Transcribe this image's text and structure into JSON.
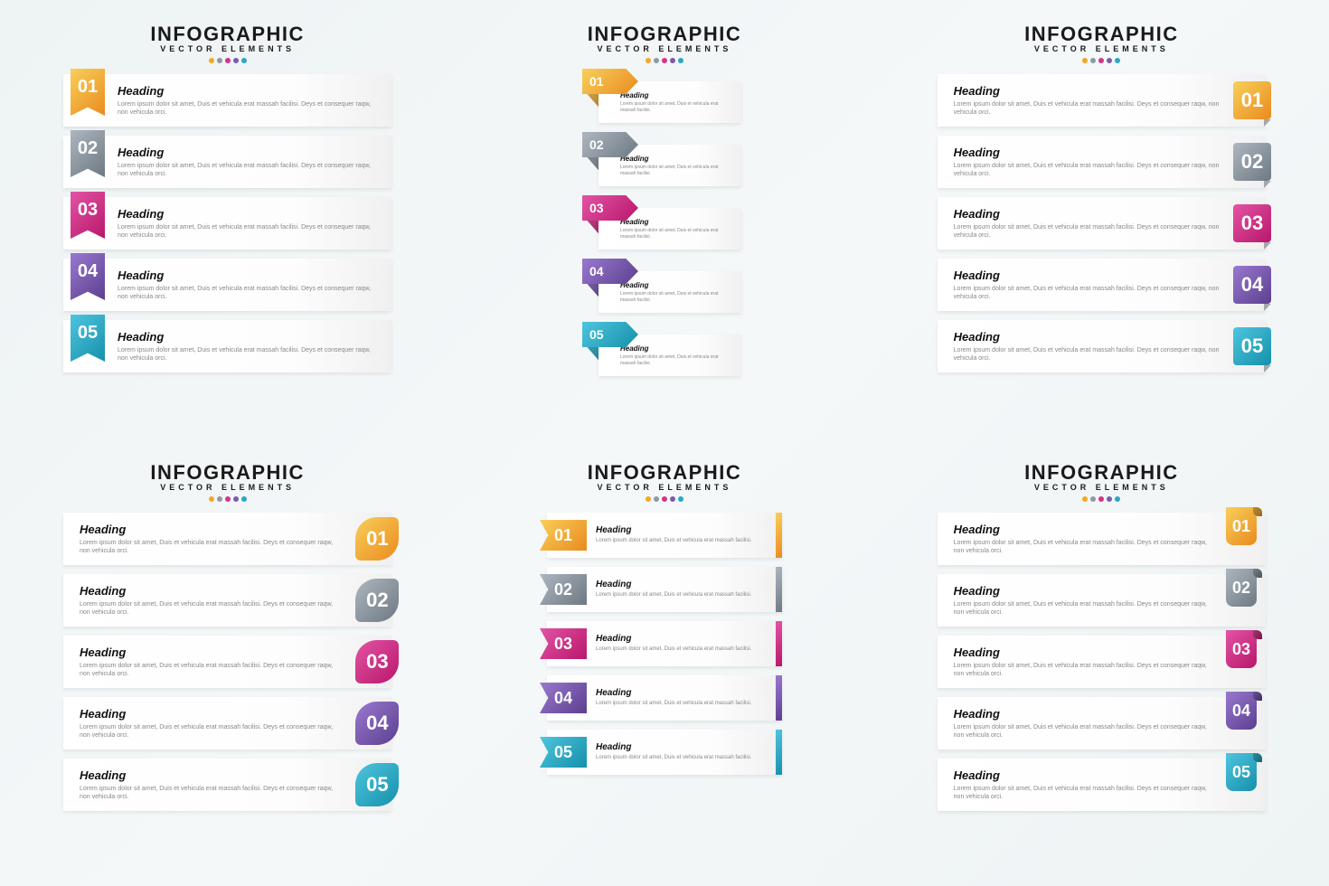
{
  "common": {
    "title": "INFOGRAPHIC",
    "subtitle": "VECTOR ELEMENTS",
    "heading_text": "Heading",
    "desc_long": "Lorem ipsum dolor sit amet, Duis et vehicula erat massah facilisi. Deys et consequer raqw, non vehicula orci.",
    "desc_short": "Lorem ipsum dolor sit amet, Duis et vehicula erat massah facilisi.",
    "title_fontsize": 22,
    "subtitle_fontsize": 9,
    "heading_fontsize": 13,
    "desc_color": "#888888",
    "heading_color": "#111111",
    "background_color": "#f0f5f6",
    "card_bg": "#ffffff"
  },
  "steps": [
    {
      "num": "01",
      "color": "#f5a623",
      "grad": "linear-gradient(135deg,#f9cf5a,#e98b1e)"
    },
    {
      "num": "02",
      "color": "#8e99a4",
      "grad": "linear-gradient(135deg,#aeb7c0,#6d7882)"
    },
    {
      "num": "03",
      "color": "#d63384",
      "grad": "linear-gradient(135deg,#e354a5,#b8176a)"
    },
    {
      "num": "04",
      "color": "#7b5bb0",
      "grad": "linear-gradient(135deg,#9979cf,#5c3f8f)"
    },
    {
      "num": "05",
      "color": "#2aa8c4",
      "grad": "linear-gradient(135deg,#4fc5de,#1590ab)"
    }
  ],
  "layouts": [
    "sA",
    "sB",
    "sC",
    "sD",
    "sE",
    "sF"
  ]
}
